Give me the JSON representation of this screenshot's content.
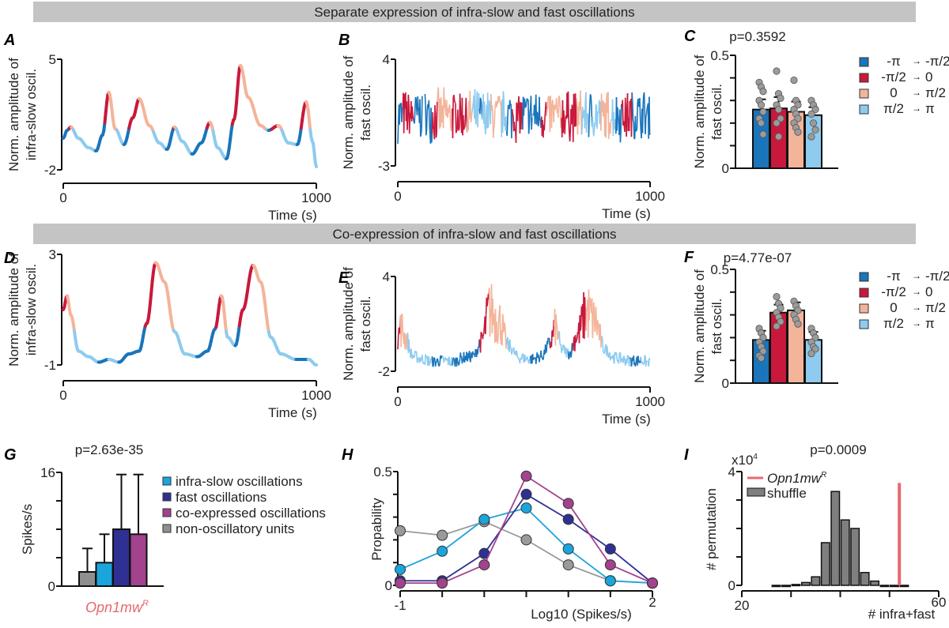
{
  "banners": [
    "Separate expression of infra-slow and fast oscillations",
    "Co-expression of infra-slow and fast oscillations"
  ],
  "phase_legend": {
    "items": [
      {
        "from": "-π",
        "to": "-π/2",
        "color": "#1a75bb"
      },
      {
        "from": "-π/2",
        "to": "0",
        "color": "#c8193c"
      },
      {
        "from": "0",
        "to": "π/2",
        "color": "#f4b49a"
      },
      {
        "from": "π/2",
        "to": "π",
        "color": "#8ecbef"
      }
    ]
  },
  "chart_data": [
    {
      "panel": "A",
      "type": "line",
      "xlabel": "Time (s)",
      "ylabel": "Norm. amplitude of infra-slow oscil.",
      "xlim": [
        0,
        1000
      ],
      "ylim": [
        -2,
        5
      ],
      "xticks": [
        "0",
        "1000"
      ],
      "yticks": [
        "-2",
        "5"
      ],
      "points": [
        [
          0,
          0
        ],
        [
          15,
          0.5
        ],
        [
          30,
          0.7
        ],
        [
          60,
          0
        ],
        [
          100,
          -0.6
        ],
        [
          130,
          -0.8
        ],
        [
          155,
          0.2
        ],
        [
          180,
          2.9
        ],
        [
          205,
          0.6
        ],
        [
          240,
          -0.4
        ],
        [
          275,
          1.3
        ],
        [
          300,
          2.5
        ],
        [
          340,
          0.8
        ],
        [
          380,
          -0.3
        ],
        [
          410,
          -0.7
        ],
        [
          440,
          0.7
        ],
        [
          470,
          -0.2
        ],
        [
          510,
          -1.0
        ],
        [
          545,
          -0.3
        ],
        [
          580,
          1.0
        ],
        [
          610,
          -0.6
        ],
        [
          645,
          -1.3
        ],
        [
          675,
          1.2
        ],
        [
          700,
          4.6
        ],
        [
          730,
          2.6
        ],
        [
          780,
          0.8
        ],
        [
          810,
          0.5
        ],
        [
          850,
          0.8
        ],
        [
          890,
          -0.3
        ],
        [
          925,
          -0.4
        ],
        [
          960,
          2.3
        ],
        [
          985,
          -0.2
        ],
        [
          1000,
          -1.8
        ]
      ]
    },
    {
      "panel": "B",
      "type": "line",
      "xlabel": "Time (s)",
      "ylabel": "Norm. amplitude of fast oscil.",
      "xlim": [
        0,
        1000
      ],
      "ylim": [
        -3,
        4
      ],
      "xticks": [
        "0",
        "1000"
      ],
      "yticks": [
        "-3",
        "4"
      ]
    },
    {
      "panel": "C",
      "type": "bar",
      "title": "p=0.3592",
      "ylabel": "Norm. amplitude of fast oscil.",
      "ylim": [
        0,
        0.5
      ],
      "yticks": [
        "0",
        "0.5"
      ],
      "values": [
        0.26,
        0.265,
        0.25,
        0.235
      ],
      "errors": [
        0.045,
        0.05,
        0.045,
        0.035
      ],
      "points": [
        [
          0.38,
          0.36,
          0.34,
          0.3,
          0.28,
          0.25,
          0.22,
          0.2,
          0.15
        ],
        [
          0.43,
          0.33,
          0.31,
          0.28,
          0.26,
          0.22,
          0.2,
          0.14
        ],
        [
          0.39,
          0.3,
          0.28,
          0.26,
          0.24,
          0.22,
          0.2,
          0.18,
          0.16
        ],
        [
          0.3,
          0.28,
          0.26,
          0.24,
          0.2,
          0.17,
          0.14
        ]
      ]
    },
    {
      "panel": "D",
      "type": "line",
      "xlabel": "Time (s)",
      "ylabel": "Norm. amplitude of infra-slow oscil.",
      "xlim": [
        0,
        1000
      ],
      "ylim": [
        -1,
        3
      ],
      "xticks": [
        "0",
        "1000"
      ],
      "yticks": [
        "-1",
        "3"
      ],
      "points": [
        [
          0,
          1.0
        ],
        [
          15,
          1.5
        ],
        [
          30,
          0.8
        ],
        [
          60,
          -0.5
        ],
        [
          100,
          -0.7
        ],
        [
          140,
          -0.9
        ],
        [
          180,
          -0.8
        ],
        [
          220,
          -0.9
        ],
        [
          260,
          -0.6
        ],
        [
          300,
          -0.5
        ],
        [
          330,
          0.5
        ],
        [
          365,
          2.7
        ],
        [
          400,
          2.0
        ],
        [
          440,
          0.2
        ],
        [
          480,
          -0.6
        ],
        [
          530,
          -0.7
        ],
        [
          570,
          -0.5
        ],
        [
          600,
          0.3
        ],
        [
          625,
          1.5
        ],
        [
          650,
          0.0
        ],
        [
          680,
          -0.3
        ],
        [
          710,
          1.0
        ],
        [
          750,
          2.6
        ],
        [
          780,
          2.0
        ],
        [
          820,
          0.0
        ],
        [
          860,
          -0.6
        ],
        [
          920,
          -0.8
        ],
        [
          970,
          -0.8
        ],
        [
          1000,
          -1.0
        ]
      ]
    },
    {
      "panel": "E",
      "type": "line",
      "xlabel": "Time (s)",
      "ylabel": "Norm. amplitude of fast oscil.",
      "xlim": [
        0,
        1000
      ],
      "ylim": [
        -2,
        4
      ],
      "xticks": [
        "0",
        "1000"
      ],
      "yticks": [
        "-2",
        "4"
      ]
    },
    {
      "panel": "F",
      "type": "bar",
      "title": "p=4.77e-07",
      "ylabel": "Norm. amplitude of fast oscil.",
      "ylim": [
        0,
        0.5
      ],
      "yticks": [
        "0",
        "0.5"
      ],
      "values": [
        0.19,
        0.31,
        0.32,
        0.19
      ],
      "errors": [
        0.04,
        0.035,
        0.035,
        0.035
      ],
      "points": [
        [
          0.24,
          0.22,
          0.2,
          0.18,
          0.16,
          0.14,
          0.12,
          0.11
        ],
        [
          0.38,
          0.35,
          0.33,
          0.31,
          0.29,
          0.27,
          0.25
        ],
        [
          0.36,
          0.34,
          0.32,
          0.3,
          0.28,
          0.26
        ],
        [
          0.24,
          0.22,
          0.2,
          0.18,
          0.16,
          0.15,
          0.13
        ]
      ]
    },
    {
      "panel": "G",
      "type": "bar",
      "title": "p=2.63e-35",
      "ylabel": "Spikes/s",
      "ylim": [
        0,
        16
      ],
      "yticks": [
        "0",
        "16"
      ],
      "xlabel": "Opn1mw",
      "xlabel_sup": "R",
      "series": [
        {
          "name": "non-oscillatory units",
          "value": 2.0,
          "error": 5.3,
          "color": "#8f8f8f"
        },
        {
          "name": "infra-slow oscillations",
          "value": 3.3,
          "error": 7.3,
          "color": "#1ba5dd"
        },
        {
          "name": "fast oscillations",
          "value": 8.0,
          "error": 15.7,
          "color": "#2e3192"
        },
        {
          "name": "co-expressed oscillations",
          "value": 7.3,
          "error": 15.7,
          "color": "#a3428e"
        }
      ],
      "legend": [
        "infra-slow oscillations",
        "fast oscillations",
        "co-expressed oscillations",
        "non-oscillatory units"
      ]
    },
    {
      "panel": "H",
      "type": "line",
      "xlabel": "Log10 (Spikes/s)",
      "ylabel": "Propability",
      "xlim": [
        -1,
        2
      ],
      "ylim": [
        0,
        0.5
      ],
      "xticks": [
        "-1",
        "2"
      ],
      "yticks": [
        "0",
        "0.5"
      ],
      "x": [
        -1,
        -0.5,
        0,
        0.5,
        1,
        1.5,
        2
      ],
      "series": [
        {
          "color": "#9a9a9a",
          "values": [
            0.24,
            0.22,
            0.28,
            0.2,
            0.09,
            0.02,
            0.01
          ]
        },
        {
          "color": "#1ba5dd",
          "values": [
            0.07,
            0.15,
            0.29,
            0.34,
            0.16,
            0.02,
            0.01
          ]
        },
        {
          "color": "#2e3192",
          "values": [
            0.02,
            0.02,
            0.14,
            0.4,
            0.29,
            0.16,
            0.01
          ]
        },
        {
          "color": "#a3428e",
          "values": [
            0.01,
            0.01,
            0.09,
            0.48,
            0.36,
            0.09,
            0.01
          ]
        }
      ]
    },
    {
      "panel": "I",
      "type": "bar",
      "title": "p=0.0009",
      "xlabel": "# infra+fast",
      "ylabel": "# permutation",
      "yunit": "x10",
      "yunit_exp": "4",
      "xlim": [
        20,
        60
      ],
      "ylim": [
        0,
        4
      ],
      "xticks": [
        "20",
        "60"
      ],
      "yticks": [
        "0",
        "4"
      ],
      "bin_edges": [
        26,
        28,
        30,
        32,
        34,
        36,
        38,
        40,
        42,
        44,
        46,
        48,
        50,
        52,
        54
      ],
      "values": [
        0.0,
        0.0,
        0.03,
        0.1,
        0.3,
        1.5,
        3.3,
        2.3,
        2.0,
        0.45,
        0.15,
        0.0,
        0.0,
        0.0
      ],
      "observed": {
        "name": "Opn1mw",
        "sup": "R",
        "value": 52,
        "height": 3.6,
        "color": "#e8686f"
      },
      "legend": [
        "Opn1mw",
        "shuffle"
      ]
    }
  ]
}
